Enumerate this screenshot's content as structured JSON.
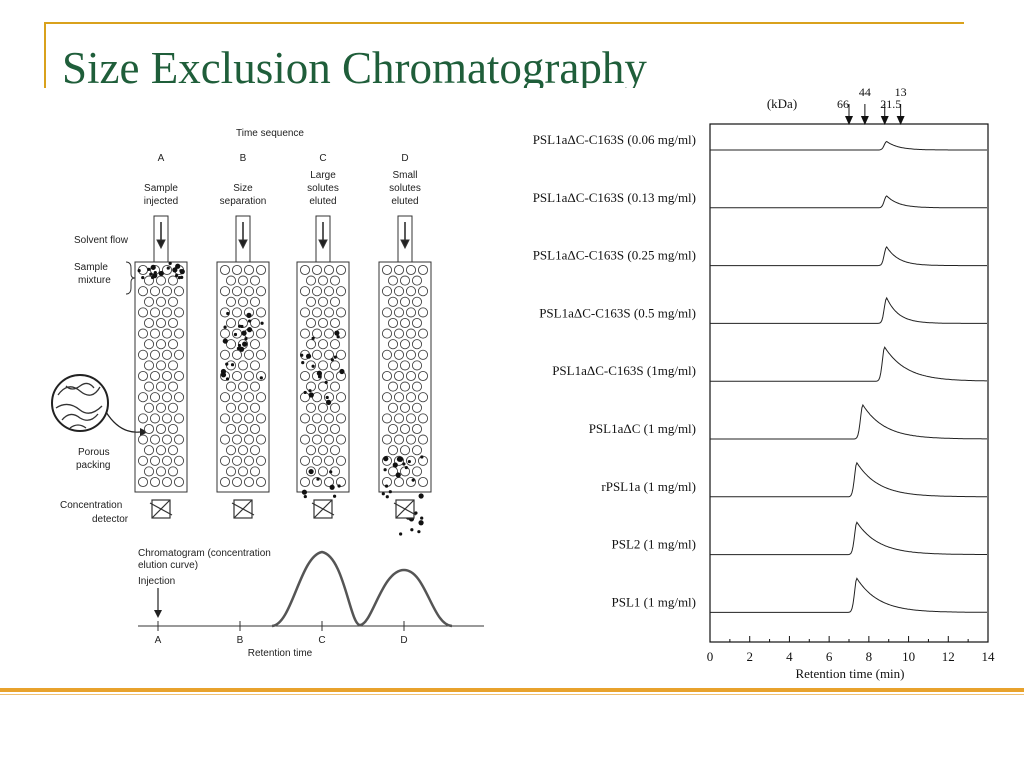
{
  "slide": {
    "title": "Size Exclusion Chromatography",
    "accent_color": "#d9a11c",
    "title_color": "#1f5e3a"
  },
  "left_diagram": {
    "time_sequence_label": "Time sequence",
    "columns": [
      {
        "letter": "A",
        "caption": [
          "Sample",
          "injected"
        ]
      },
      {
        "letter": "B",
        "caption": [
          "Size",
          "separation"
        ]
      },
      {
        "letter": "C",
        "caption": [
          "Large",
          "solutes",
          "eluted"
        ]
      },
      {
        "letter": "D",
        "caption": [
          "Small",
          "solutes",
          "eluted"
        ]
      }
    ],
    "solvent_flow_label": "Solvent flow",
    "sample_mixture_label": [
      "Sample",
      "mixture"
    ],
    "porous_packing_label": [
      "Porous",
      "packing"
    ],
    "detector_label": [
      "Concentration",
      "detector"
    ],
    "chromatogram_label": [
      "Chromatogram (concentration",
      "elution curve)"
    ],
    "injection_label": "Injection",
    "axis_ticks": [
      "A",
      "B",
      "C",
      "D"
    ],
    "axis_label": "Retention time"
  },
  "right_chart": {
    "kda_label": "(kDa)",
    "markers": [
      {
        "label": "66",
        "x": 7.0
      },
      {
        "label": "44",
        "x": 7.8
      },
      {
        "label": "21.5",
        "x": 8.8
      },
      {
        "label": "13",
        "x": 9.6
      }
    ],
    "traces": [
      {
        "label": "PSL1aΔC-C163S (0.06 mg/ml)",
        "peak_x": 8.9,
        "height": 0.25
      },
      {
        "label": "PSL1aΔC-C163S (0.13 mg/ml)",
        "peak_x": 8.9,
        "height": 0.35
      },
      {
        "label": "PSL1aΔC-C163S (0.25 mg/ml)",
        "peak_x": 8.9,
        "height": 0.55
      },
      {
        "label": "PSL1aΔC-C163S (0.5 mg/ml)",
        "peak_x": 8.9,
        "height": 0.75
      },
      {
        "label": "PSL1aΔC-C163S (1mg/ml)",
        "peak_x": 8.8,
        "height": 1.0
      },
      {
        "label": "PSL1aΔC (1 mg/ml)",
        "peak_x": 7.7,
        "height": 1.0
      },
      {
        "label": "rPSL1a (1 mg/ml)",
        "peak_x": 7.4,
        "height": 1.0
      },
      {
        "label": "PSL2 (1 mg/ml)",
        "peak_x": 7.4,
        "height": 0.95
      },
      {
        "label": "PSL1 (1 mg/ml)",
        "peak_x": 7.4,
        "height": 1.0
      }
    ],
    "x_ticks": [
      "0",
      "2",
      "4",
      "6",
      "8",
      "10",
      "12",
      "14"
    ],
    "x_min": 0,
    "x_max": 14,
    "x_label": "Retention time (min)"
  }
}
